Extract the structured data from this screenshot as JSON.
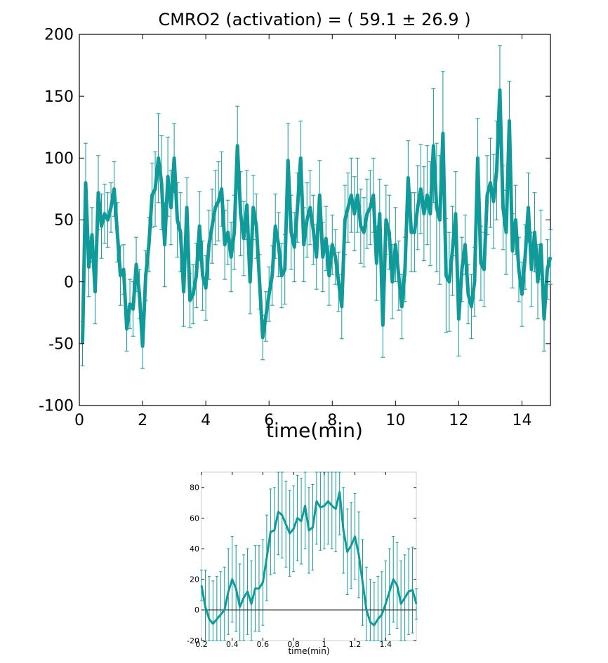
{
  "chart_data": [
    {
      "type": "line",
      "title": "CMRO2 (activation) = ( 59.1 ± 26.9 )",
      "xlabel": "time(min)",
      "ylabel": "",
      "xlim": [
        0,
        14.9
      ],
      "ylim": [
        -100,
        200
      ],
      "x_ticks": [
        0,
        2,
        4,
        6,
        8,
        10,
        12,
        14
      ],
      "y_ticks": [
        -100,
        -50,
        0,
        50,
        100,
        150,
        200
      ],
      "x_tick_labels": [
        "0",
        "2",
        "4",
        "6",
        "8",
        "10",
        "12",
        "14"
      ],
      "y_tick_labels": [
        "-100",
        "-50",
        "0",
        "50",
        "100",
        "150",
        "200"
      ],
      "grid": false,
      "color": "#109a99",
      "error_bars": true,
      "series": [
        {
          "x": [
            0.1,
            0.2,
            0.3,
            0.4,
            0.5,
            0.6,
            0.7,
            0.8,
            0.9,
            1.0,
            1.1,
            1.2,
            1.3,
            1.4,
            1.5,
            1.6,
            1.7,
            1.8,
            1.9,
            2.0,
            2.1,
            2.2,
            2.3,
            2.4,
            2.5,
            2.6,
            2.7,
            2.8,
            2.9,
            3.0,
            3.1,
            3.2,
            3.3,
            3.4,
            3.5,
            3.6,
            3.7,
            3.8,
            3.9,
            4.0,
            4.1,
            4.2,
            4.3,
            4.4,
            4.5,
            4.6,
            4.7,
            4.8,
            4.9,
            5.0,
            5.1,
            5.2,
            5.3,
            5.4,
            5.5,
            5.6,
            5.7,
            5.8,
            5.9,
            6.0,
            6.1,
            6.2,
            6.3,
            6.4,
            6.5,
            6.6,
            6.7,
            6.8,
            6.9,
            7.0,
            7.1,
            7.2,
            7.3,
            7.4,
            7.5,
            7.6,
            7.7,
            7.8,
            7.9,
            8.0,
            8.1,
            8.2,
            8.3,
            8.4,
            8.5,
            8.6,
            8.7,
            8.8,
            8.9,
            9.0,
            9.1,
            9.2,
            9.3,
            9.4,
            9.5,
            9.6,
            9.7,
            9.8,
            9.9,
            10.0,
            10.1,
            10.2,
            10.3,
            10.4,
            10.5,
            10.6,
            10.7,
            10.8,
            10.9,
            11.0,
            11.1,
            11.2,
            11.3,
            11.4,
            11.5,
            11.6,
            11.7,
            11.8,
            11.9,
            12.0,
            12.1,
            12.2,
            12.3,
            12.4,
            12.5,
            12.6,
            12.7,
            12.8,
            12.9,
            13.0,
            13.1,
            13.2,
            13.3,
            13.4,
            13.5,
            13.6,
            13.7,
            13.8,
            13.9,
            14.0,
            14.1,
            14.2,
            14.3,
            14.4,
            14.5,
            14.6,
            14.7,
            14.8,
            14.9
          ],
          "values": [
            -50,
            80,
            12,
            38,
            -8,
            72,
            45,
            55,
            50,
            60,
            75,
            40,
            5,
            10,
            -38,
            -18,
            -22,
            14,
            -10,
            -52,
            5,
            30,
            70,
            75,
            100,
            80,
            30,
            85,
            60,
            100,
            50,
            40,
            -8,
            60,
            -15,
            -10,
            5,
            45,
            5,
            -5,
            30,
            45,
            60,
            65,
            75,
            30,
            40,
            20,
            40,
            110,
            55,
            35,
            62,
            0,
            60,
            45,
            0,
            -45,
            -28,
            -10,
            5,
            45,
            30,
            5,
            10,
            98,
            40,
            28,
            60,
            100,
            30,
            50,
            60,
            42,
            20,
            70,
            20,
            35,
            5,
            30,
            20,
            0,
            -20,
            50,
            60,
            70,
            55,
            70,
            45,
            40,
            55,
            60,
            70,
            15,
            55,
            -35,
            50,
            40,
            0,
            30,
            5,
            -20,
            10,
            84,
            40,
            40,
            60,
            75,
            55,
            70,
            55,
            110,
            60,
            50,
            120,
            5,
            0,
            25,
            55,
            -30,
            10,
            30,
            -10,
            -20,
            0,
            100,
            15,
            10,
            70,
            80,
            65,
            90,
            155,
            60,
            40,
            130,
            25,
            50,
            10,
            -10,
            20,
            60,
            10,
            40,
            0,
            30,
            -30,
            10,
            20
          ],
          "errors": [
            18,
            32,
            24,
            22,
            26,
            30,
            26,
            24,
            22,
            20,
            22,
            24,
            24,
            20,
            18,
            20,
            22,
            22,
            20,
            18,
            20,
            22,
            26,
            30,
            36,
            38,
            34,
            32,
            30,
            28,
            30,
            32,
            28,
            24,
            22,
            24,
            26,
            28,
            28,
            26,
            28,
            30,
            30,
            32,
            30,
            28,
            26,
            28,
            30,
            32,
            34,
            30,
            28,
            26,
            26,
            26,
            22,
            18,
            20,
            22,
            24,
            26,
            26,
            26,
            28,
            30,
            30,
            28,
            28,
            30,
            30,
            30,
            30,
            28,
            26,
            28,
            28,
            26,
            24,
            24,
            22,
            24,
            26,
            28,
            28,
            30,
            30,
            30,
            30,
            28,
            28,
            30,
            30,
            30,
            28,
            26,
            28,
            30,
            30,
            30,
            28,
            26,
            26,
            30,
            32,
            32,
            34,
            36,
            38,
            40,
            42,
            46,
            52,
            52,
            50,
            46,
            40,
            36,
            34,
            30,
            26,
            24,
            24,
            26,
            28,
            32,
            30,
            30,
            32,
            36,
            38,
            40,
            36,
            34,
            34,
            32,
            30,
            28,
            26,
            26,
            26,
            28,
            30,
            32,
            30,
            28,
            26,
            24,
            22
          ]
        }
      ]
    },
    {
      "type": "line",
      "title": "",
      "xlabel": "time(min)",
      "ylabel": "",
      "xlim": [
        0.2,
        1.6
      ],
      "ylim": [
        -20,
        90
      ],
      "x_ticks": [
        0.2,
        0.4,
        0.6,
        0.8,
        1.0,
        1.2,
        1.4
      ],
      "y_ticks": [
        -20,
        0,
        20,
        40,
        60,
        80
      ],
      "x_tick_labels": [
        "0.2",
        "0.4",
        "0.6",
        "0.8",
        "1",
        "1.2",
        "1.4"
      ],
      "y_tick_labels": [
        "-20",
        "0",
        "20",
        "40",
        "60",
        "80"
      ],
      "grid": false,
      "color": "#109a99",
      "error_bars": true,
      "zero_line": true,
      "series": [
        {
          "x": [
            0.2,
            0.225,
            0.25,
            0.275,
            0.3,
            0.325,
            0.35,
            0.375,
            0.4,
            0.425,
            0.45,
            0.475,
            0.5,
            0.525,
            0.55,
            0.575,
            0.6,
            0.625,
            0.65,
            0.675,
            0.7,
            0.725,
            0.75,
            0.775,
            0.8,
            0.825,
            0.85,
            0.875,
            0.9,
            0.925,
            0.95,
            0.975,
            1.0,
            1.025,
            1.05,
            1.075,
            1.1,
            1.125,
            1.15,
            1.175,
            1.2,
            1.225,
            1.25,
            1.275,
            1.3,
            1.325,
            1.35,
            1.375,
            1.4,
            1.425,
            1.45,
            1.475,
            1.5,
            1.525,
            1.55,
            1.575,
            1.6
          ],
          "values": [
            16,
            2,
            -6,
            -9,
            -6,
            -3,
            0,
            12,
            20,
            14,
            2,
            8,
            12,
            4,
            14,
            14,
            18,
            34,
            51,
            52,
            64,
            62,
            56,
            50,
            53,
            60,
            58,
            68,
            52,
            54,
            71,
            67,
            68,
            71,
            68,
            66,
            77,
            52,
            38,
            42,
            48,
            36,
            18,
            0,
            -8,
            -10,
            -6,
            -3,
            4,
            12,
            20,
            16,
            4,
            8,
            12,
            13,
            4
          ],
          "errors": [
            10,
            24,
            28,
            28,
            28,
            28,
            28,
            28,
            28,
            28,
            28,
            28,
            28,
            28,
            28,
            28,
            28,
            28,
            28,
            28,
            28,
            28,
            28,
            28,
            28,
            28,
            28,
            28,
            28,
            28,
            28,
            28,
            28,
            28,
            28,
            28,
            28,
            28,
            28,
            28,
            28,
            28,
            28,
            28,
            28,
            28,
            28,
            28,
            28,
            28,
            28,
            28,
            28,
            28,
            28,
            28,
            10
          ]
        }
      ]
    }
  ]
}
